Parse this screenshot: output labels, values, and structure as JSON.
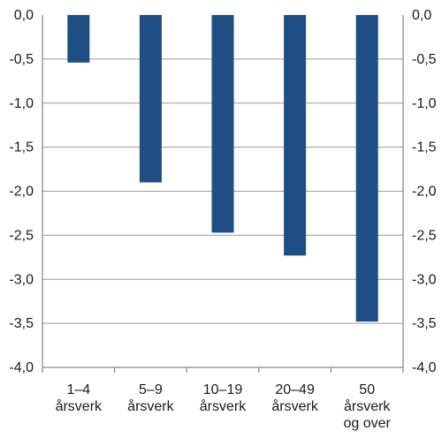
{
  "chart_data": {
    "type": "bar",
    "categories": [
      [
        "1–4",
        "årsverk"
      ],
      [
        "5–9",
        "årsverk"
      ],
      [
        "10–19",
        "årsverk"
      ],
      [
        "20–49",
        "årsverk"
      ],
      [
        "50",
        "årsverk",
        "og over"
      ]
    ],
    "values": [
      -0.54,
      -1.9,
      -2.47,
      -2.73,
      -3.48
    ],
    "ylim": [
      -4.0,
      0.0
    ],
    "yticks": [
      "0,0",
      "-0,5",
      "-1,0",
      "-1,5",
      "-2,0",
      "-2,5",
      "-3,0",
      "-3,5",
      "-4,0"
    ],
    "grid": true,
    "title": "",
    "xlabel": "",
    "ylabel": "",
    "bar_color": "#1f4e85",
    "grid_color": "#9a9a9a",
    "axis_color": "#6e6e6e"
  }
}
